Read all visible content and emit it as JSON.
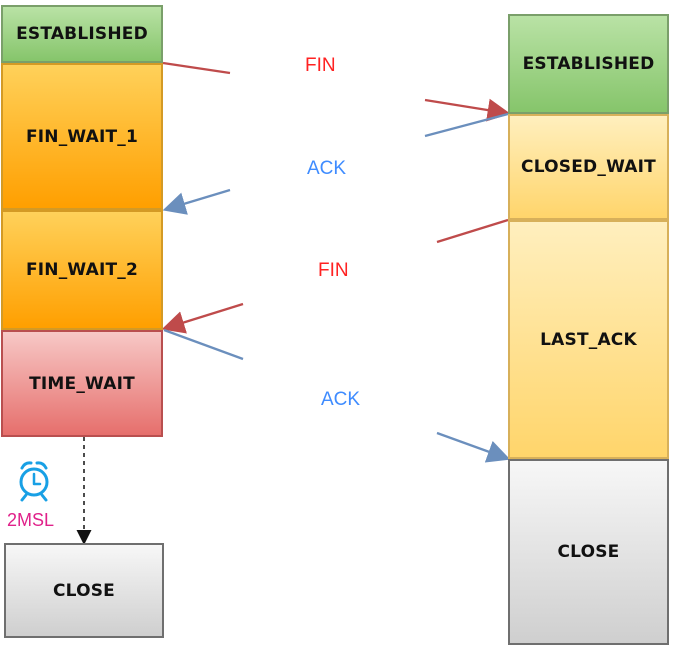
{
  "diagram": {
    "left_states": [
      "ESTABLISHED",
      "FIN_WAIT_1",
      "FIN_WAIT_2",
      "TIME_WAIT",
      "CLOSE"
    ],
    "right_states": [
      "ESTABLISHED",
      "CLOSED_WAIT",
      "LAST_ACK",
      "CLOSE"
    ],
    "messages": [
      "FIN",
      "ACK",
      "FIN",
      "ACK"
    ],
    "timer_label": "2MSL",
    "icons": {
      "timer": "alarm-clock-icon"
    },
    "colors": {
      "fin": "#ff2222",
      "ack": "#3f8cff",
      "timer_label": "#e0218a"
    }
  }
}
